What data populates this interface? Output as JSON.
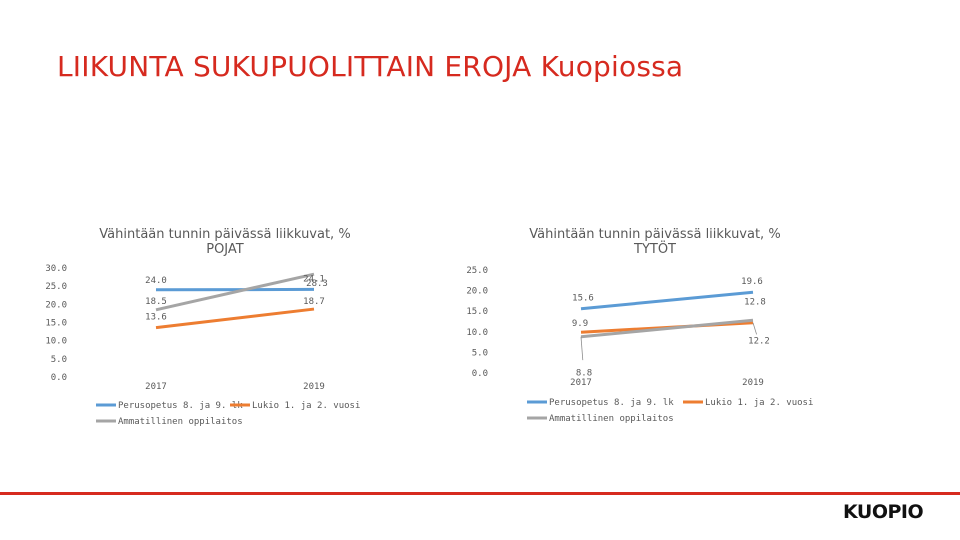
{
  "slide": {
    "title": "LIIKUNTA SUKUPUOLITTAIN EROJA Kuopiossa",
    "logo_text": "KUOPIO",
    "accent_color": "#d62a1f"
  },
  "chart_data": [
    {
      "type": "line",
      "title_line1": "Vähintään tunnin päivässä liikkuvat, %",
      "title_line2": "POJAT",
      "categories": [
        "2017",
        "2019"
      ],
      "ylim": [
        0,
        30
      ],
      "yticks": [
        "0.0",
        "5.0",
        "10.0",
        "15.0",
        "20.0",
        "25.0",
        "30.0"
      ],
      "grid": false,
      "legend_position": "bottom",
      "series": [
        {
          "name": "Perusopetus 8. ja 9. lk",
          "values": [
            24.0,
            24.1
          ],
          "labels": [
            "24.0",
            "24.1"
          ],
          "color": "#5b9bd5"
        },
        {
          "name": "Lukio 1. ja 2. vuosi",
          "values": [
            13.6,
            18.7
          ],
          "labels": [
            "13.6",
            "18.7"
          ],
          "color": "#ed7d31"
        },
        {
          "name": "Ammatillinen oppilaitos",
          "values": [
            18.5,
            28.3
          ],
          "labels": [
            "18.5",
            "28.3"
          ],
          "color": "#a5a5a5"
        }
      ]
    },
    {
      "type": "line",
      "title_line1": "Vähintään tunnin päivässä liikkuvat, %",
      "title_line2": "TYTÖT",
      "categories": [
        "2017",
        "2019"
      ],
      "ylim": [
        0,
        25
      ],
      "yticks": [
        "0.0",
        "5.0",
        "10.0",
        "15.0",
        "20.0",
        "25.0"
      ],
      "grid": false,
      "legend_position": "bottom",
      "series": [
        {
          "name": "Perusopetus 8. ja 9. lk",
          "values": [
            15.6,
            19.6
          ],
          "labels": [
            "15.6",
            "19.6"
          ],
          "color": "#5b9bd5"
        },
        {
          "name": "Lukio 1. ja 2. vuosi",
          "values": [
            9.9,
            12.2
          ],
          "labels": [
            "9.9",
            "12.2"
          ],
          "color": "#ed7d31"
        },
        {
          "name": "Ammatillinen oppilaitos",
          "values": [
            8.8,
            12.8
          ],
          "labels": [
            "8.8",
            "12.8"
          ],
          "color": "#a5a5a5"
        }
      ]
    }
  ]
}
